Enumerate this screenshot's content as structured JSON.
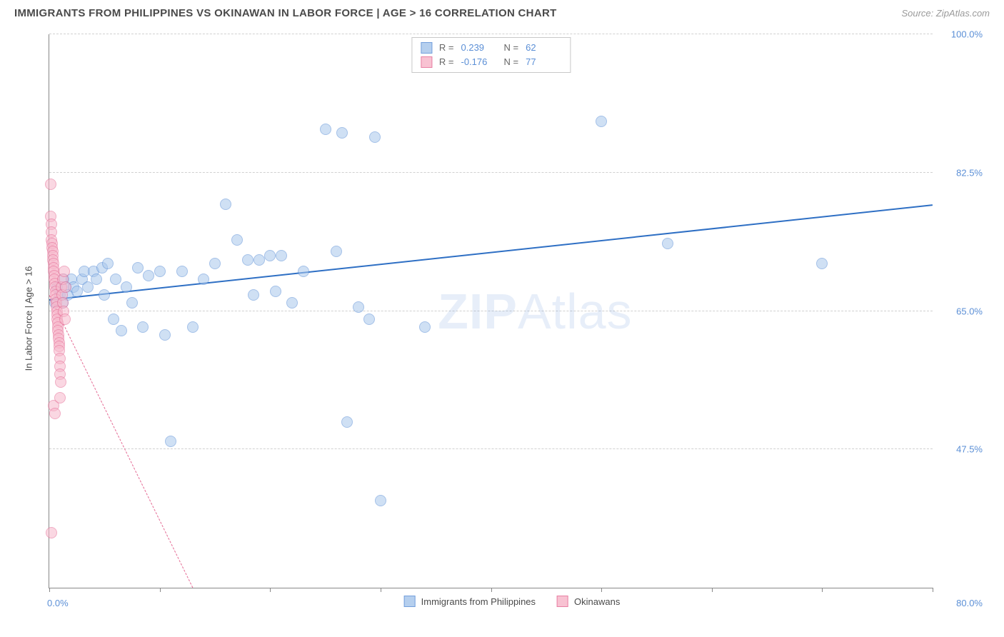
{
  "header": {
    "title": "IMMIGRANTS FROM PHILIPPINES VS OKINAWAN IN LABOR FORCE | AGE > 16 CORRELATION CHART",
    "source": "Source: ZipAtlas.com"
  },
  "watermark": {
    "bold": "ZIP",
    "thin": "Atlas"
  },
  "chart": {
    "type": "scatter",
    "y_axis_title": "In Labor Force | Age > 16",
    "xlim": [
      0,
      80
    ],
    "ylim": [
      30,
      100
    ],
    "x_ticks": [
      0,
      10,
      20,
      30,
      40,
      50,
      60,
      70,
      80
    ],
    "y_gridlines": [
      47.5,
      65.0,
      82.5,
      100.0
    ],
    "y_tick_labels": [
      "47.5%",
      "65.0%",
      "82.5%",
      "100.0%"
    ],
    "x_label_min": "0.0%",
    "x_label_max": "80.0%",
    "background_color": "#ffffff",
    "grid_color": "#d0d0d0",
    "axis_color": "#888888",
    "marker_radius": 8,
    "marker_border_width": 1,
    "series": [
      {
        "name": "Immigrants from Philippines",
        "fill_color": "#a9c7ec",
        "fill_opacity": 0.55,
        "stroke_color": "#5b8fd6",
        "r_label": "R =",
        "r_value": "0.239",
        "n_label": "N =",
        "n_value": "62",
        "trend": {
          "x1": 0,
          "y1": 66.5,
          "x2": 80,
          "y2": 78.5,
          "color": "#2e6fc4",
          "width": 2,
          "dash": "solid"
        },
        "points": [
          [
            0.5,
            66
          ],
          [
            0.7,
            68
          ],
          [
            1.0,
            67
          ],
          [
            1.2,
            66
          ],
          [
            1.3,
            69
          ],
          [
            1.5,
            68
          ],
          [
            1.7,
            67
          ],
          [
            2.0,
            69
          ],
          [
            2.2,
            68
          ],
          [
            2.5,
            67.5
          ],
          [
            3.0,
            69
          ],
          [
            3.2,
            70
          ],
          [
            3.5,
            68
          ],
          [
            4.0,
            70
          ],
          [
            4.3,
            69
          ],
          [
            4.8,
            70.5
          ],
          [
            5.0,
            67
          ],
          [
            5.3,
            71
          ],
          [
            5.8,
            64
          ],
          [
            6.0,
            69
          ],
          [
            6.5,
            62.5
          ],
          [
            7.0,
            68
          ],
          [
            7.5,
            66
          ],
          [
            8.0,
            70.5
          ],
          [
            8.5,
            63
          ],
          [
            9.0,
            69.5
          ],
          [
            10.0,
            70
          ],
          [
            10.5,
            62
          ],
          [
            11.0,
            48.5
          ],
          [
            12.0,
            70
          ],
          [
            13.0,
            63
          ],
          [
            14.0,
            69
          ],
          [
            15.0,
            71
          ],
          [
            16.0,
            78.5
          ],
          [
            17.0,
            74
          ],
          [
            18.0,
            71.5
          ],
          [
            18.5,
            67
          ],
          [
            19.0,
            71.5
          ],
          [
            20.0,
            72
          ],
          [
            20.5,
            67.5
          ],
          [
            21.0,
            72
          ],
          [
            22.0,
            66
          ],
          [
            23.0,
            70
          ],
          [
            25.0,
            88
          ],
          [
            26.0,
            72.5
          ],
          [
            26.5,
            87.5
          ],
          [
            27.0,
            51
          ],
          [
            28.0,
            65.5
          ],
          [
            29.0,
            64
          ],
          [
            29.5,
            87
          ],
          [
            30.0,
            41
          ],
          [
            34.0,
            63
          ],
          [
            50.0,
            89
          ],
          [
            56.0,
            73.5
          ],
          [
            70.0,
            71
          ]
        ]
      },
      {
        "name": "Okinawans",
        "fill_color": "#f7b8cb",
        "fill_opacity": 0.55,
        "stroke_color": "#e56a94",
        "r_label": "R =",
        "r_value": "-0.176",
        "n_label": "N =",
        "n_value": "77",
        "trend": {
          "x1": 0,
          "y1": 67,
          "x2": 13,
          "y2": 30,
          "color": "#e56a94",
          "width": 1,
          "dash": "dashed"
        },
        "points": [
          [
            0.1,
            81
          ],
          [
            0.15,
            77
          ],
          [
            0.18,
            76
          ],
          [
            0.2,
            75
          ],
          [
            0.22,
            74
          ],
          [
            0.25,
            73.5
          ],
          [
            0.28,
            73
          ],
          [
            0.3,
            72.5
          ],
          [
            0.32,
            72
          ],
          [
            0.35,
            71.5
          ],
          [
            0.38,
            71
          ],
          [
            0.4,
            70.5
          ],
          [
            0.42,
            70
          ],
          [
            0.45,
            69.5
          ],
          [
            0.48,
            69
          ],
          [
            0.5,
            68.5
          ],
          [
            0.52,
            68
          ],
          [
            0.55,
            67.5
          ],
          [
            0.58,
            67
          ],
          [
            0.6,
            66.5
          ],
          [
            0.62,
            66
          ],
          [
            0.65,
            65.5
          ],
          [
            0.68,
            65
          ],
          [
            0.7,
            64.5
          ],
          [
            0.72,
            64
          ],
          [
            0.75,
            63.5
          ],
          [
            0.78,
            63
          ],
          [
            0.8,
            62.5
          ],
          [
            0.82,
            62
          ],
          [
            0.85,
            61.5
          ],
          [
            0.88,
            61
          ],
          [
            0.9,
            60.5
          ],
          [
            0.92,
            60
          ],
          [
            0.95,
            59
          ],
          [
            0.98,
            58
          ],
          [
            1.0,
            57
          ],
          [
            1.05,
            56
          ],
          [
            1.1,
            68
          ],
          [
            1.15,
            67
          ],
          [
            1.2,
            66
          ],
          [
            1.25,
            69
          ],
          [
            1.3,
            65
          ],
          [
            1.35,
            70
          ],
          [
            1.4,
            64
          ],
          [
            1.5,
            68
          ],
          [
            0.2,
            37
          ],
          [
            0.4,
            53
          ],
          [
            0.5,
            52
          ],
          [
            1.0,
            54
          ]
        ]
      }
    ],
    "legend_bottom": [
      {
        "label": "Immigrants from Philippines",
        "fill": "#a9c7ec",
        "stroke": "#5b8fd6"
      },
      {
        "label": "Okinawans",
        "fill": "#f7b8cb",
        "stroke": "#e56a94"
      }
    ]
  }
}
